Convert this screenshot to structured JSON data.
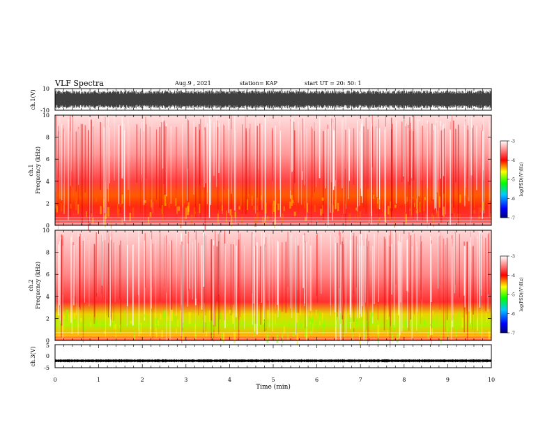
{
  "header": {
    "title": "VLF Spectra",
    "date": "Aug.9  , 2021",
    "station": "station= KAP",
    "start": "start  UT  =   20: 50: 1"
  },
  "chart_data": [
    {
      "type": "line",
      "panel": "ch1-waveform",
      "ylabel": "ch.1(V)",
      "y_ticks": [
        "10",
        "-10"
      ],
      "ylim": [
        -10,
        10
      ],
      "xlim": [
        0,
        10
      ],
      "note_values": "dense black waveform saturating near ±7 V over full 0–10 min"
    },
    {
      "type": "heatmap",
      "panel": "ch1-spectrogram",
      "ylabel": "ch.1\nFrequency  (kHz)",
      "y_ticks": [
        "0",
        "2",
        "4",
        "6",
        "8",
        "10"
      ],
      "ylim": [
        0,
        10
      ],
      "xlim": [
        0,
        10
      ],
      "colorbar": {
        "label": "log(PSD)(V²/Hz)",
        "ticks": [
          "-3",
          "-4",
          "-5",
          "-6",
          "-7"
        ],
        "range": [
          -7,
          -3
        ]
      },
      "band_intensity_by_freq_khz": [
        {
          "f": 0.5,
          "level": -3.6
        },
        {
          "f": 1.5,
          "level": -4.3
        },
        {
          "f": 2.5,
          "level": -4.1
        },
        {
          "f": 3.5,
          "level": -3.6
        },
        {
          "f": 5.0,
          "level": -3.3
        },
        {
          "f": 8.0,
          "level": -3.1
        }
      ]
    },
    {
      "type": "heatmap",
      "panel": "ch2-spectrogram",
      "ylabel": "ch.2\nFrequency  (kHz)",
      "y_ticks": [
        "0",
        "2",
        "4",
        "6",
        "8",
        "10"
      ],
      "ylim": [
        0,
        10
      ],
      "xlim": [
        0,
        10
      ],
      "colorbar": {
        "label": "log(PSD)(V²/Hz)",
        "ticks": [
          "-3",
          "-4",
          "-5",
          "-6",
          "-7"
        ],
        "range": [
          -7,
          -3
        ]
      },
      "band_intensity_by_freq_khz": [
        {
          "f": 0.5,
          "level": -3.8
        },
        {
          "f": 1.5,
          "level": -4.6
        },
        {
          "f": 2.5,
          "level": -4.2
        },
        {
          "f": 3.5,
          "level": -3.7
        },
        {
          "f": 5.0,
          "level": -3.3
        },
        {
          "f": 8.0,
          "level": -3.1
        }
      ]
    },
    {
      "type": "line",
      "panel": "ch3-waveform",
      "ylabel": "ch.3(V)",
      "y_ticks": [
        "5",
        "0",
        "-5"
      ],
      "ylim": [
        -5,
        5
      ],
      "xlim": [
        0,
        10
      ],
      "approx_level": -2,
      "note_values": "flat noisy trace near -2 V over full 0–10 min"
    }
  ],
  "x_axis": {
    "label": "Time  (min)",
    "ticks": [
      "0",
      "1",
      "2",
      "3",
      "4",
      "5",
      "6",
      "7",
      "8",
      "9",
      "10"
    ],
    "range": [
      0,
      10
    ]
  },
  "colors": {
    "waveform": "#000000",
    "colormap": [
      "#0000cc",
      "#00aaff",
      "#00ff00",
      "#ffff00",
      "#ff0000",
      "#ffffff"
    ]
  }
}
